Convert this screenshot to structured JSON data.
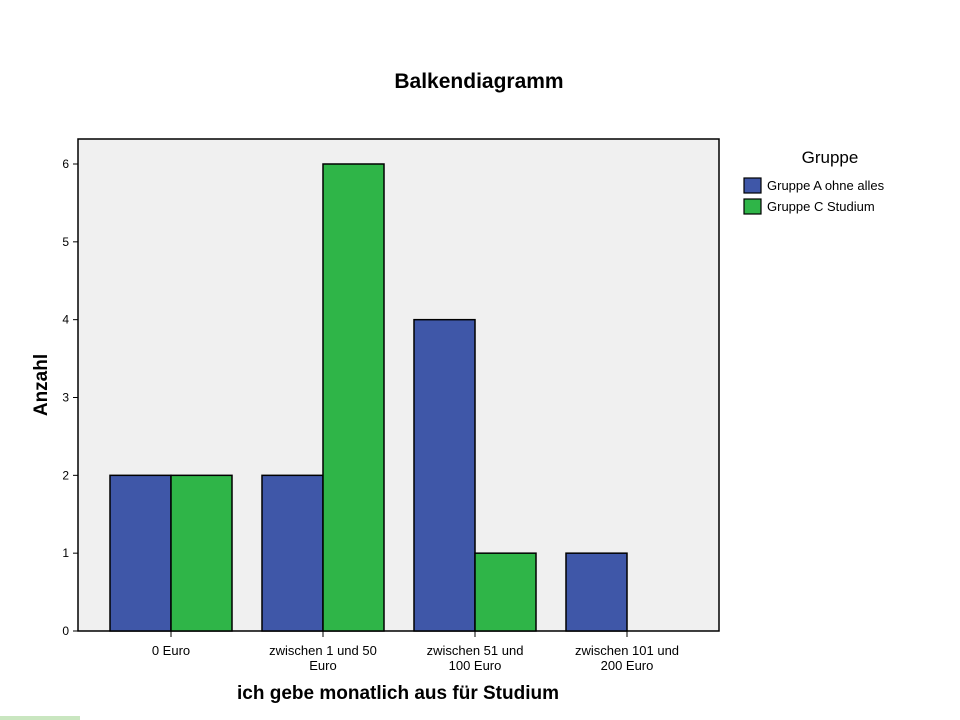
{
  "chart_data": {
    "type": "bar",
    "title": "Balkendiagramm",
    "xlabel": "ich gebe monatlich aus für Studium",
    "ylabel": "Anzahl",
    "ylim": [
      0,
      6
    ],
    "yticks": [
      "0",
      "1",
      "2",
      "3",
      "4",
      "5",
      "6"
    ],
    "categories": [
      [
        "0 Euro"
      ],
      [
        "zwischen 1 und 50",
        "Euro"
      ],
      [
        "zwischen 51 und",
        "100 Euro"
      ],
      [
        "zwischen 101 und",
        "200 Euro"
      ]
    ],
    "legend": {
      "title": "Gruppe",
      "position": "right"
    },
    "series": [
      {
        "name": "Gruppe A ohne alles",
        "color": "#3f57a8",
        "values": [
          2,
          2,
          4,
          1
        ]
      },
      {
        "name": "Gruppe C Studium",
        "color": "#2fb548",
        "values": [
          2,
          6,
          1,
          0
        ]
      }
    ],
    "plot_background": "#f0f0f0",
    "grid": false
  }
}
